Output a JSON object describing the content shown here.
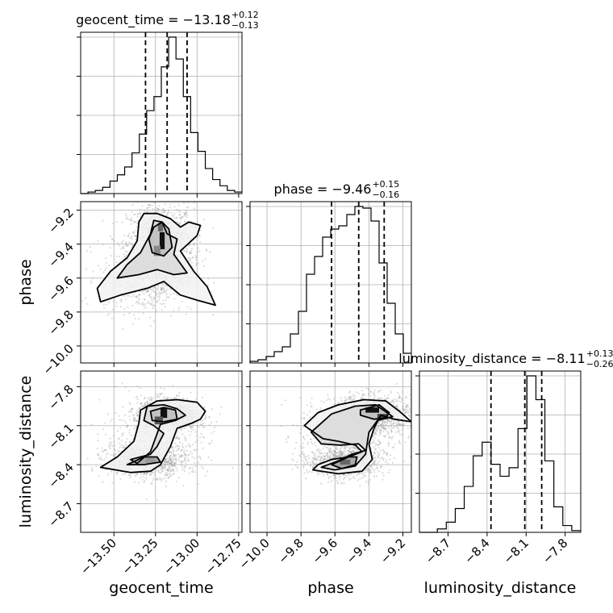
{
  "chart_data": {
    "type": "corner",
    "parameters": [
      {
        "key": "geocent_time",
        "axis_label": "geocent_time",
        "title_prefix": "geocent_time = ",
        "median": "−13.18",
        "err_plus": "+0.12",
        "err_minus": "−0.13",
        "range": [
          -13.7,
          -12.73
        ],
        "ticks": [
          -13.5,
          -13.25,
          -13.0,
          -12.75
        ],
        "tick_labels": [
          "−13.50",
          "−13.25",
          "−13.00",
          "−12.75"
        ],
        "quantiles": [
          -13.31,
          -13.18,
          -13.06
        ],
        "hist_edges_range": [
          -13.7,
          -12.73
        ],
        "hist_counts": [
          0,
          1,
          2,
          4,
          8,
          12,
          17,
          26,
          38,
          53,
          62,
          81,
          100,
          86,
          62,
          39,
          27,
          16,
          9,
          5,
          2,
          1
        ]
      },
      {
        "key": "phase",
        "axis_label": "phase",
        "title_prefix": "phase = ",
        "median": "−9.46",
        "err_plus": "+0.15",
        "err_minus": "−0.16",
        "range": [
          -10.1,
          -9.15
        ],
        "ticks": [
          -10.0,
          -9.8,
          -9.6,
          -9.4,
          -9.2
        ],
        "tick_labels": [
          "−10.0",
          "−9.8",
          "−9.6",
          "−9.4",
          "−9.2"
        ],
        "quantiles": [
          -9.62,
          -9.46,
          -9.31
        ],
        "hist_edges_range": [
          -10.1,
          -9.15
        ],
        "hist_counts": [
          1,
          2,
          4,
          7,
          10,
          18,
          32,
          55,
          66,
          78,
          83,
          85,
          92,
          97,
          96,
          88,
          62,
          37,
          18,
          6
        ]
      },
      {
        "key": "luminosity_distance",
        "axis_label": "luminosity_distance",
        "title_prefix": "luminosity_distance = ",
        "median": "−8.11",
        "err_plus": "+0.13",
        "err_minus": "−0.26",
        "range": [
          -8.92,
          -7.68
        ],
        "ticks": [
          -8.7,
          -8.4,
          -8.1,
          -7.8
        ],
        "tick_labels": [
          "−8.7",
          "−8.4",
          "−8.1",
          "−7.8"
        ],
        "quantiles": [
          -8.37,
          -8.11,
          -7.98
        ],
        "hist_edges_range": [
          -8.92,
          -7.68
        ],
        "hist_counts": [
          0,
          0,
          2,
          6,
          14,
          27,
          45,
          53,
          40,
          33,
          38,
          61,
          92,
          78,
          42,
          15,
          4,
          1
        ]
      }
    ],
    "contours_2d": [
      {
        "x_param": "geocent_time",
        "y_param": "phase",
        "levels": [
          [
            [
              -13.6,
              -9.66
            ],
            [
              -13.52,
              -9.56
            ],
            [
              -13.42,
              -9.48
            ],
            [
              -13.36,
              -9.38
            ],
            [
              -13.35,
              -9.27
            ],
            [
              -13.32,
              -9.22
            ],
            [
              -13.24,
              -9.22
            ],
            [
              -13.16,
              -9.25
            ],
            [
              -13.1,
              -9.3
            ],
            [
              -13.05,
              -9.27
            ],
            [
              -12.98,
              -9.29
            ],
            [
              -13.0,
              -9.35
            ],
            [
              -13.1,
              -9.44
            ],
            [
              -13.02,
              -9.56
            ],
            [
              -12.94,
              -9.65
            ],
            [
              -12.89,
              -9.76
            ],
            [
              -13.0,
              -9.73
            ],
            [
              -13.1,
              -9.7
            ],
            [
              -13.2,
              -9.62
            ],
            [
              -13.3,
              -9.66
            ],
            [
              -13.46,
              -9.7
            ],
            [
              -13.58,
              -9.74
            ],
            [
              -13.6,
              -9.66
            ]
          ],
          [
            [
              -13.48,
              -9.6
            ],
            [
              -13.42,
              -9.52
            ],
            [
              -13.34,
              -9.45
            ],
            [
              -13.28,
              -9.34
            ],
            [
              -13.26,
              -9.26
            ],
            [
              -13.21,
              -9.27
            ],
            [
              -13.18,
              -9.34
            ],
            [
              -13.12,
              -9.37
            ],
            [
              -13.14,
              -9.46
            ],
            [
              -13.06,
              -9.57
            ],
            [
              -13.14,
              -9.58
            ],
            [
              -13.24,
              -9.55
            ],
            [
              -13.35,
              -9.58
            ],
            [
              -13.48,
              -9.6
            ]
          ],
          [
            [
              -13.26,
              -9.3
            ],
            [
              -13.21,
              -9.27
            ],
            [
              -13.17,
              -9.31
            ],
            [
              -13.15,
              -9.42
            ],
            [
              -13.2,
              -9.47
            ],
            [
              -13.27,
              -9.45
            ],
            [
              -13.29,
              -9.37
            ],
            [
              -13.26,
              -9.3
            ]
          ]
        ]
      },
      {
        "x_param": "geocent_time",
        "y_param": "luminosity_distance",
        "levels": [
          [
            [
              -13.58,
              -8.42
            ],
            [
              -13.48,
              -8.34
            ],
            [
              -13.38,
              -8.22
            ],
            [
              -13.35,
              -8.08
            ],
            [
              -13.34,
              -7.98
            ],
            [
              -13.24,
              -7.91
            ],
            [
              -13.12,
              -7.9
            ],
            [
              -13.0,
              -7.92
            ],
            [
              -12.95,
              -7.99
            ],
            [
              -12.98,
              -8.05
            ],
            [
              -13.03,
              -8.08
            ],
            [
              -13.12,
              -8.12
            ],
            [
              -13.16,
              -8.26
            ],
            [
              -13.22,
              -8.4
            ],
            [
              -13.28,
              -8.45
            ],
            [
              -13.4,
              -8.46
            ],
            [
              -13.58,
              -8.42
            ]
          ],
          [
            [
              -13.4,
              -8.36
            ],
            [
              -13.28,
              -8.32
            ],
            [
              -13.24,
              -8.26
            ],
            [
              -13.2,
              -8.16
            ],
            [
              -13.26,
              -8.1
            ],
            [
              -13.32,
              -8.06
            ],
            [
              -13.3,
              -7.95
            ],
            [
              -13.2,
              -7.94
            ],
            [
              -13.12,
              -7.97
            ],
            [
              -13.07,
              -8.02
            ],
            [
              -13.13,
              -8.06
            ],
            [
              -13.22,
              -8.09
            ],
            [
              -13.28,
              -8.3
            ],
            [
              -13.36,
              -8.39
            ],
            [
              -13.4,
              -8.36
            ]
          ],
          [
            [
              -13.28,
              -7.99
            ],
            [
              -13.2,
              -7.96
            ],
            [
              -13.13,
              -7.98
            ],
            [
              -13.12,
              -8.05
            ],
            [
              -13.2,
              -8.07
            ],
            [
              -13.27,
              -8.06
            ],
            [
              -13.28,
              -7.99
            ]
          ],
          [
            [
              -13.42,
              -8.4
            ],
            [
              -13.32,
              -8.34
            ],
            [
              -13.24,
              -8.34
            ],
            [
              -13.22,
              -8.38
            ],
            [
              -13.32,
              -8.4
            ],
            [
              -13.42,
              -8.4
            ]
          ]
        ]
      },
      {
        "x_param": "phase",
        "y_param": "luminosity_distance",
        "levels": [
          [
            [
              -9.73,
              -8.44
            ],
            [
              -9.7,
              -8.4
            ],
            [
              -9.62,
              -8.36
            ],
            [
              -9.52,
              -8.34
            ],
            [
              -9.44,
              -8.3
            ],
            [
              -9.48,
              -8.25
            ],
            [
              -9.58,
              -8.22
            ],
            [
              -9.67,
              -8.2
            ],
            [
              -9.78,
              -8.1
            ],
            [
              -9.7,
              -8.0
            ],
            [
              -9.58,
              -7.94
            ],
            [
              -9.43,
              -7.9
            ],
            [
              -9.3,
              -7.91
            ],
            [
              -9.22,
              -7.99
            ],
            [
              -9.15,
              -8.07
            ],
            [
              -9.25,
              -8.05
            ],
            [
              -9.33,
              -8.02
            ],
            [
              -9.37,
              -8.12
            ],
            [
              -9.4,
              -8.24
            ],
            [
              -9.38,
              -8.36
            ],
            [
              -9.44,
              -8.45
            ],
            [
              -9.58,
              -8.47
            ],
            [
              -9.73,
              -8.44
            ]
          ],
          [
            [
              -9.68,
              -8.42
            ],
            [
              -9.58,
              -8.37
            ],
            [
              -9.5,
              -8.32
            ],
            [
              -9.42,
              -8.29
            ],
            [
              -9.46,
              -8.24
            ],
            [
              -9.57,
              -8.25
            ],
            [
              -9.68,
              -8.24
            ],
            [
              -9.74,
              -8.15
            ],
            [
              -9.62,
              -8.01
            ],
            [
              -9.48,
              -7.95
            ],
            [
              -9.36,
              -7.94
            ],
            [
              -9.26,
              -8.03
            ],
            [
              -9.35,
              -8.06
            ],
            [
              -9.4,
              -8.15
            ],
            [
              -9.42,
              -8.32
            ],
            [
              -9.48,
              -8.41
            ],
            [
              -9.6,
              -8.44
            ],
            [
              -9.68,
              -8.42
            ]
          ],
          [
            [
              -9.45,
              -7.98
            ],
            [
              -9.34,
              -7.94
            ],
            [
              -9.28,
              -8.0
            ],
            [
              -9.3,
              -8.04
            ],
            [
              -9.37,
              -8.05
            ],
            [
              -9.45,
              -8.02
            ],
            [
              -9.45,
              -7.98
            ]
          ],
          [
            [
              -9.62,
              -8.4
            ],
            [
              -9.52,
              -8.34
            ],
            [
              -9.47,
              -8.34
            ],
            [
              -9.48,
              -8.4
            ],
            [
              -9.56,
              -8.43
            ],
            [
              -9.62,
              -8.4
            ]
          ]
        ]
      }
    ]
  }
}
